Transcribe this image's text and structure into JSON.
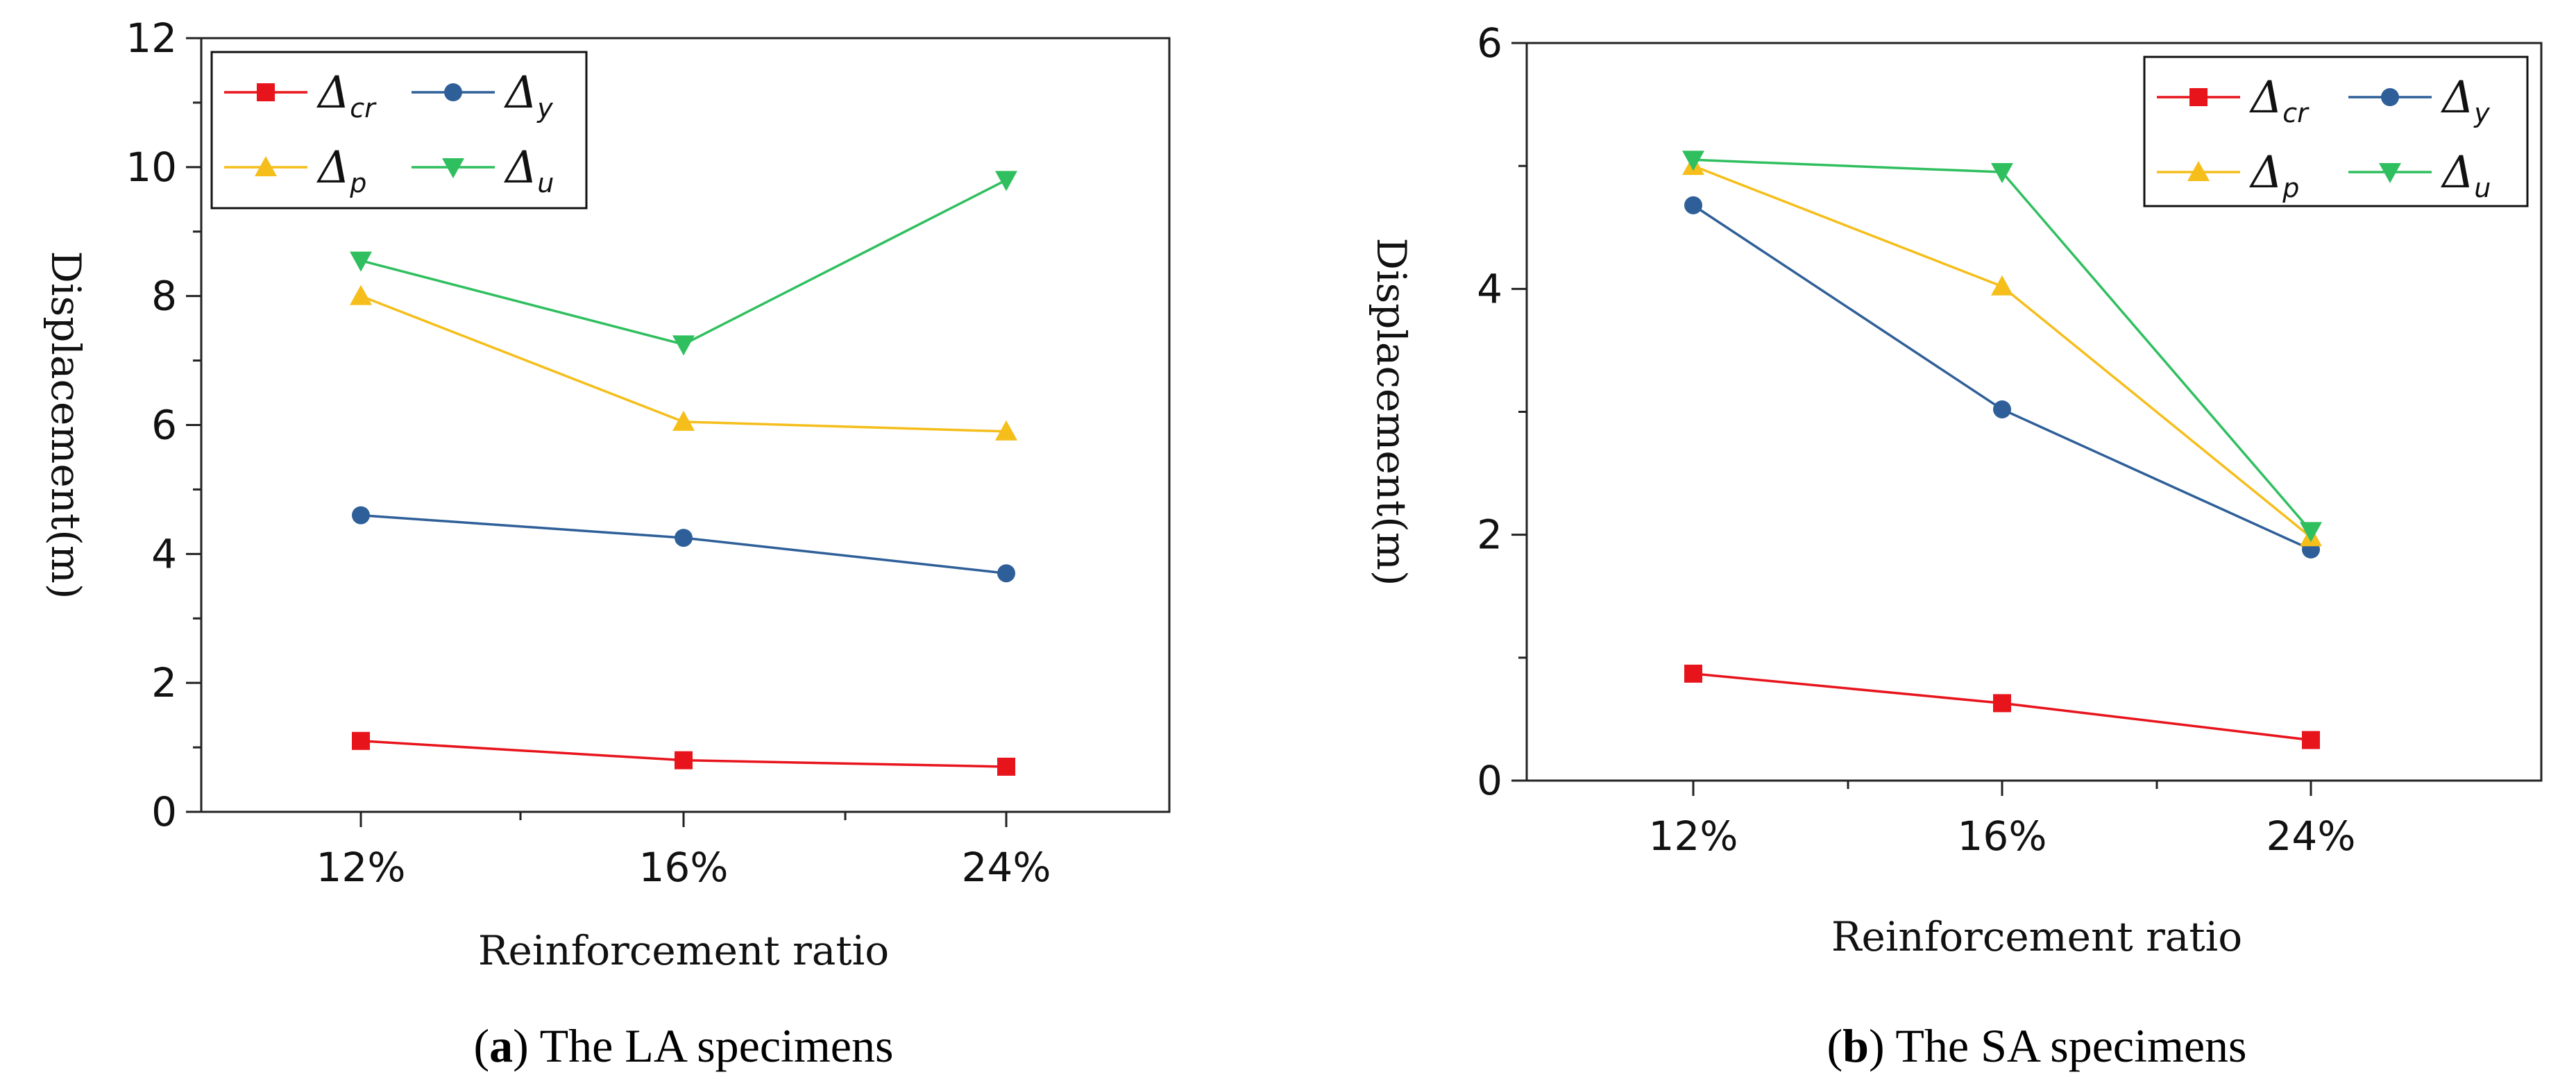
{
  "chart_data": [
    {
      "type": "line",
      "caption_label": "a",
      "caption_text": " The LA specimens",
      "categories": [
        "12%",
        "16%",
        "24%"
      ],
      "xlabel": "Reinforcement ratio",
      "ylabel": "Displacement(m)",
      "ylim": [
        0,
        12
      ],
      "yticks": [
        0,
        2,
        4,
        6,
        8,
        10,
        12
      ],
      "legend_position": "top-left",
      "series": [
        {
          "name": "Δcr",
          "symbol": "Δ",
          "sub": "cr",
          "color": "#e8141c",
          "marker": "square",
          "values": [
            1.1,
            0.8,
            0.7
          ]
        },
        {
          "name": "Δy",
          "symbol": "Δ",
          "sub": "y",
          "color": "#2e5f98",
          "marker": "circle",
          "values": [
            4.6,
            4.25,
            3.7
          ]
        },
        {
          "name": "Δp",
          "symbol": "Δ",
          "sub": "p",
          "color": "#f5be1b",
          "marker": "triangle-up",
          "values": [
            8.0,
            6.05,
            5.9
          ]
        },
        {
          "name": "Δu",
          "symbol": "Δ",
          "sub": "u",
          "color": "#2fbf5f",
          "marker": "triangle-down",
          "values": [
            8.55,
            7.25,
            9.8
          ]
        }
      ]
    },
    {
      "type": "line",
      "caption_label": "b",
      "caption_text": " The SA specimens",
      "categories": [
        "12%",
        "16%",
        "24%"
      ],
      "xlabel": "Reinforcement ratio",
      "ylabel": "Displacement(m)",
      "ylim": [
        0,
        6
      ],
      "yticks": [
        0,
        2,
        4,
        6
      ],
      "legend_position": "top-right",
      "series": [
        {
          "name": "Δcr",
          "symbol": "Δ",
          "sub": "cr",
          "color": "#e8141c",
          "marker": "square",
          "values": [
            0.87,
            0.63,
            0.33
          ]
        },
        {
          "name": "Δy",
          "symbol": "Δ",
          "sub": "y",
          "color": "#2e5f98",
          "marker": "circle",
          "values": [
            4.68,
            3.02,
            1.88
          ]
        },
        {
          "name": "Δp",
          "symbol": "Δ",
          "sub": "p",
          "color": "#f5be1b",
          "marker": "triangle-up",
          "values": [
            5.0,
            4.02,
            1.98
          ]
        },
        {
          "name": "Δu",
          "symbol": "Δ",
          "sub": "u",
          "color": "#2fbf5f",
          "marker": "triangle-down",
          "values": [
            5.05,
            4.95,
            2.03
          ]
        }
      ]
    }
  ]
}
